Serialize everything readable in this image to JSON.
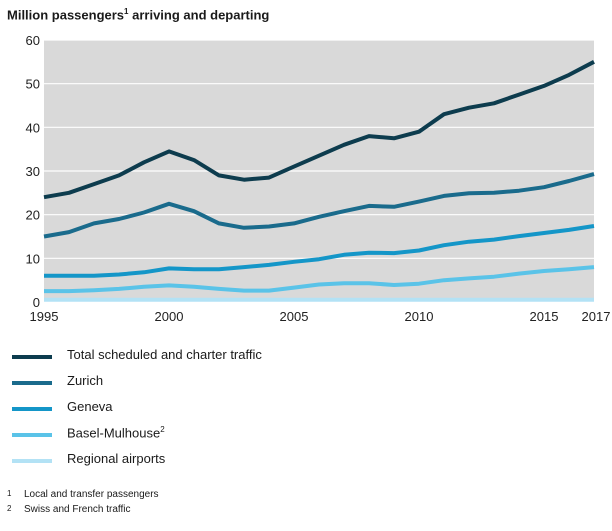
{
  "title": {
    "text": "Million passengers arriving and departing",
    "main": "Million passengers",
    "mark": "1",
    "rest": " arriving and departing"
  },
  "chart_data": {
    "type": "line",
    "x": [
      1995,
      1996,
      1997,
      1998,
      1999,
      2000,
      2001,
      2002,
      2003,
      2004,
      2005,
      2006,
      2007,
      2008,
      2009,
      2010,
      2011,
      2012,
      2013,
      2014,
      2015,
      2016,
      2017
    ],
    "xticks": [
      1995,
      2000,
      2005,
      2010,
      2015,
      2017
    ],
    "yticks": [
      0,
      10,
      20,
      30,
      40,
      50,
      60
    ],
    "xlim": [
      1995,
      2017
    ],
    "ylim": [
      0,
      60
    ],
    "grid": true,
    "legend_position": "bottom",
    "series": [
      {
        "name": "Total scheduled and charter  traffic",
        "color": "#0d3c4e",
        "values": [
          24,
          25,
          27,
          29,
          32,
          34.5,
          32.5,
          29,
          28,
          28.5,
          31,
          33.5,
          36,
          38,
          37.5,
          39,
          43,
          44.5,
          45.5,
          47.5,
          49.5,
          52,
          55
        ]
      },
      {
        "name": "Zurich",
        "color": "#1a6b8c",
        "values": [
          15,
          16,
          18,
          19,
          20.5,
          22.5,
          20.8,
          18,
          17,
          17.3,
          18,
          19.5,
          20.8,
          22,
          21.8,
          23,
          24.3,
          24.9,
          25,
          25.5,
          26.3,
          27.7,
          29.3
        ]
      },
      {
        "name": "Geneva",
        "color": "#1496c8",
        "values": [
          6,
          6,
          6,
          6.3,
          6.8,
          7.7,
          7.5,
          7.5,
          8,
          8.5,
          9.2,
          9.8,
          10.8,
          11.3,
          11.2,
          11.8,
          13,
          13.8,
          14.3,
          15.1,
          15.8,
          16.5,
          17.4
        ]
      },
      {
        "name": "Basel-Mulhouse",
        "mark": "2",
        "color": "#5ac3e8",
        "values": [
          2.5,
          2.5,
          2.7,
          3,
          3.5,
          3.8,
          3.5,
          3,
          2.6,
          2.6,
          3.3,
          4,
          4.3,
          4.3,
          3.9,
          4.2,
          5,
          5.4,
          5.8,
          6.5,
          7.1,
          7.5,
          8
        ]
      },
      {
        "name": "Regional airports",
        "color": "#b3e2f5",
        "values": [
          0.5,
          0.5,
          0.5,
          0.5,
          0.5,
          0.5,
          0.5,
          0.5,
          0.5,
          0.5,
          0.5,
          0.5,
          0.5,
          0.5,
          0.5,
          0.5,
          0.5,
          0.5,
          0.5,
          0.5,
          0.5,
          0.5,
          0.5
        ]
      }
    ]
  },
  "footnotes": [
    {
      "mark": "1",
      "text": "Local and transfer passengers"
    },
    {
      "mark": "2",
      "text": "Swiss and French traffic"
    }
  ]
}
